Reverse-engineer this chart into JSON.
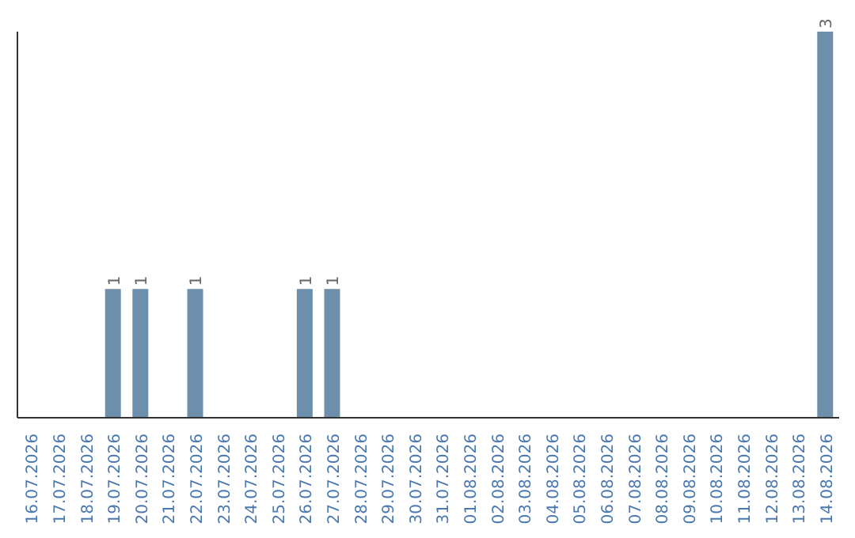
{
  "chart_data": {
    "type": "bar",
    "categories": [
      "16.07.2026",
      "17.07.2026",
      "18.07.2026",
      "19.07.2026",
      "20.07.2026",
      "21.07.2026",
      "22.07.2026",
      "23.07.2026",
      "24.07.2026",
      "25.07.2026",
      "26.07.2026",
      "27.07.2026",
      "28.07.2026",
      "29.07.2026",
      "30.07.2026",
      "31.07.2026",
      "01.08.2026",
      "02.08.2026",
      "03.08.2026",
      "04.08.2026",
      "05.08.2026",
      "06.08.2026",
      "07.08.2026",
      "08.08.2026",
      "09.08.2026",
      "10.08.2026",
      "11.08.2026",
      "12.08.2026",
      "13.08.2026",
      "14.08.2026"
    ],
    "values": [
      0,
      0,
      0,
      1,
      1,
      0,
      1,
      0,
      0,
      0,
      1,
      1,
      0,
      0,
      0,
      0,
      0,
      0,
      0,
      0,
      0,
      0,
      0,
      0,
      0,
      0,
      0,
      0,
      0,
      3
    ],
    "value_labels": [
      null,
      null,
      null,
      "1",
      "1",
      null,
      "1",
      null,
      null,
      null,
      "1",
      "1",
      null,
      null,
      null,
      null,
      null,
      null,
      null,
      null,
      null,
      null,
      null,
      null,
      null,
      null,
      null,
      null,
      null,
      "3"
    ],
    "color": "#6d8fac",
    "tick_labels": "x"
  }
}
